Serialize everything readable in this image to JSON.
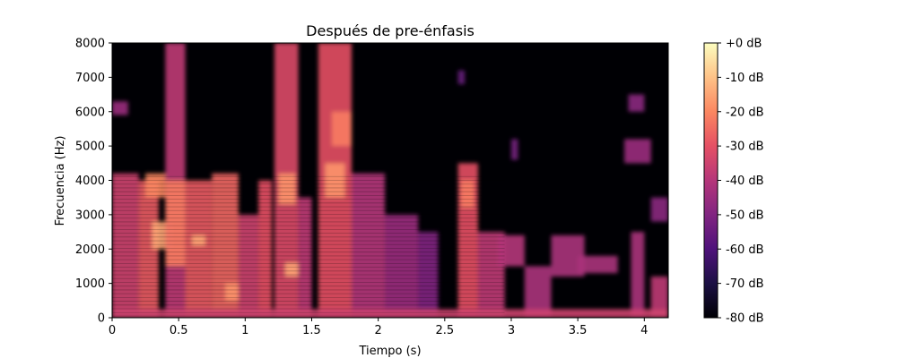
{
  "figure": {
    "title": "Después de pre-énfasis",
    "xlabel": "Tiempo (s)",
    "ylabel": "Frecuencia (Hz)"
  },
  "chart_data": {
    "type": "heatmap",
    "title": "Después de pre-énfasis",
    "xlabel": "Tiempo (s)",
    "ylabel": "Frecuencia (Hz)",
    "xlim": [
      0,
      4.18
    ],
    "ylim": [
      0,
      8000
    ],
    "x_ticks": [
      0,
      0.5,
      1,
      1.5,
      2,
      2.5,
      3,
      3.5,
      4
    ],
    "x_tick_labels": [
      "0",
      "0.5",
      "1",
      "1.5",
      "2",
      "2.5",
      "3",
      "3.5",
      "4"
    ],
    "y_ticks": [
      0,
      1000,
      2000,
      3000,
      4000,
      5000,
      6000,
      7000,
      8000
    ],
    "y_tick_labels": [
      "0",
      "1000",
      "2000",
      "3000",
      "4000",
      "5000",
      "6000",
      "7000",
      "8000"
    ],
    "colorbar": {
      "colormap": "magma",
      "range_db": [
        -80,
        0
      ],
      "ticks": [
        0,
        -10,
        -20,
        -30,
        -40,
        -50,
        -60,
        -70,
        -80
      ],
      "tick_labels": [
        "+0 dB",
        "-10 dB",
        "-20 dB",
        "-30 dB",
        "-40 dB",
        "-50 dB",
        "-60 dB",
        "-70 dB",
        "-80 dB"
      ]
    },
    "grid": false,
    "regions_db": [
      {
        "t": [
          0.0,
          0.2
        ],
        "f": [
          0,
          4200
        ],
        "db": -35
      },
      {
        "t": [
          0.0,
          0.12
        ],
        "f": [
          5900,
          6300
        ],
        "db": -45
      },
      {
        "t": [
          0.2,
          0.35
        ],
        "f": [
          0,
          4000
        ],
        "db": -28
      },
      {
        "t": [
          0.3,
          0.45
        ],
        "f": [
          2000,
          2800
        ],
        "db": -15
      },
      {
        "t": [
          0.25,
          0.4
        ],
        "f": [
          3500,
          4200
        ],
        "db": -20
      },
      {
        "t": [
          0.4,
          0.55
        ],
        "f": [
          0,
          8000
        ],
        "db": -38
      },
      {
        "t": [
          0.4,
          0.55
        ],
        "f": [
          1500,
          4000
        ],
        "db": -22
      },
      {
        "t": [
          0.55,
          0.75
        ],
        "f": [
          0,
          4000
        ],
        "db": -28
      },
      {
        "t": [
          0.6,
          0.7
        ],
        "f": [
          2100,
          2400
        ],
        "db": -15
      },
      {
        "t": [
          0.75,
          0.95
        ],
        "f": [
          0,
          4200
        ],
        "db": -26
      },
      {
        "t": [
          0.85,
          0.95
        ],
        "f": [
          500,
          1000
        ],
        "db": -18
      },
      {
        "t": [
          0.95,
          1.1
        ],
        "f": [
          0,
          3000
        ],
        "db": -35
      },
      {
        "t": [
          1.1,
          1.2
        ],
        "f": [
          0,
          4000
        ],
        "db": -30
      },
      {
        "t": [
          1.22,
          1.4
        ],
        "f": [
          0,
          8000
        ],
        "db": -32
      },
      {
        "t": [
          1.25,
          1.38
        ],
        "f": [
          3300,
          4200
        ],
        "db": -18
      },
      {
        "t": [
          1.3,
          1.4
        ],
        "f": [
          1200,
          1600
        ],
        "db": -15
      },
      {
        "t": [
          1.4,
          1.5
        ],
        "f": [
          0,
          3500
        ],
        "db": -38
      },
      {
        "t": [
          1.55,
          1.8
        ],
        "f": [
          0,
          8000
        ],
        "db": -30
      },
      {
        "t": [
          1.6,
          1.75
        ],
        "f": [
          3500,
          4500
        ],
        "db": -18
      },
      {
        "t": [
          1.65,
          1.8
        ],
        "f": [
          5000,
          6000
        ],
        "db": -22
      },
      {
        "t": [
          1.8,
          2.05
        ],
        "f": [
          0,
          4200
        ],
        "db": -40
      },
      {
        "t": [
          2.05,
          2.3
        ],
        "f": [
          0,
          3000
        ],
        "db": -45
      },
      {
        "t": [
          2.3,
          2.45
        ],
        "f": [
          0,
          2500
        ],
        "db": -50
      },
      {
        "t": [
          2.6,
          2.75
        ],
        "f": [
          0,
          4500
        ],
        "db": -30
      },
      {
        "t": [
          2.62,
          2.72
        ],
        "f": [
          3200,
          4000
        ],
        "db": -22
      },
      {
        "t": [
          2.75,
          2.95
        ],
        "f": [
          0,
          2500
        ],
        "db": -38
      },
      {
        "t": [
          2.9,
          3.1
        ],
        "f": [
          1500,
          2400
        ],
        "db": -40
      },
      {
        "t": [
          3.1,
          3.3
        ],
        "f": [
          0,
          1500
        ],
        "db": -42
      },
      {
        "t": [
          3.3,
          3.55
        ],
        "f": [
          1200,
          2400
        ],
        "db": -42
      },
      {
        "t": [
          3.5,
          3.8
        ],
        "f": [
          1300,
          1800
        ],
        "db": -42
      },
      {
        "t": [
          3.0,
          3.05
        ],
        "f": [
          4600,
          5200
        ],
        "db": -52
      },
      {
        "t": [
          2.6,
          2.65
        ],
        "f": [
          6800,
          7200
        ],
        "db": -55
      },
      {
        "t": [
          3.85,
          4.05
        ],
        "f": [
          4500,
          5200
        ],
        "db": -45
      },
      {
        "t": [
          3.88,
          4.0
        ],
        "f": [
          6000,
          6500
        ],
        "db": -48
      },
      {
        "t": [
          3.9,
          4.0
        ],
        "f": [
          0,
          2500
        ],
        "db": -42
      },
      {
        "t": [
          4.05,
          4.18
        ],
        "f": [
          0,
          1200
        ],
        "db": -38
      },
      {
        "t": [
          4.05,
          4.18
        ],
        "f": [
          2800,
          3500
        ],
        "db": -48
      },
      {
        "t": [
          0.0,
          4.18
        ],
        "f": [
          0,
          250
        ],
        "db": -35
      }
    ]
  }
}
